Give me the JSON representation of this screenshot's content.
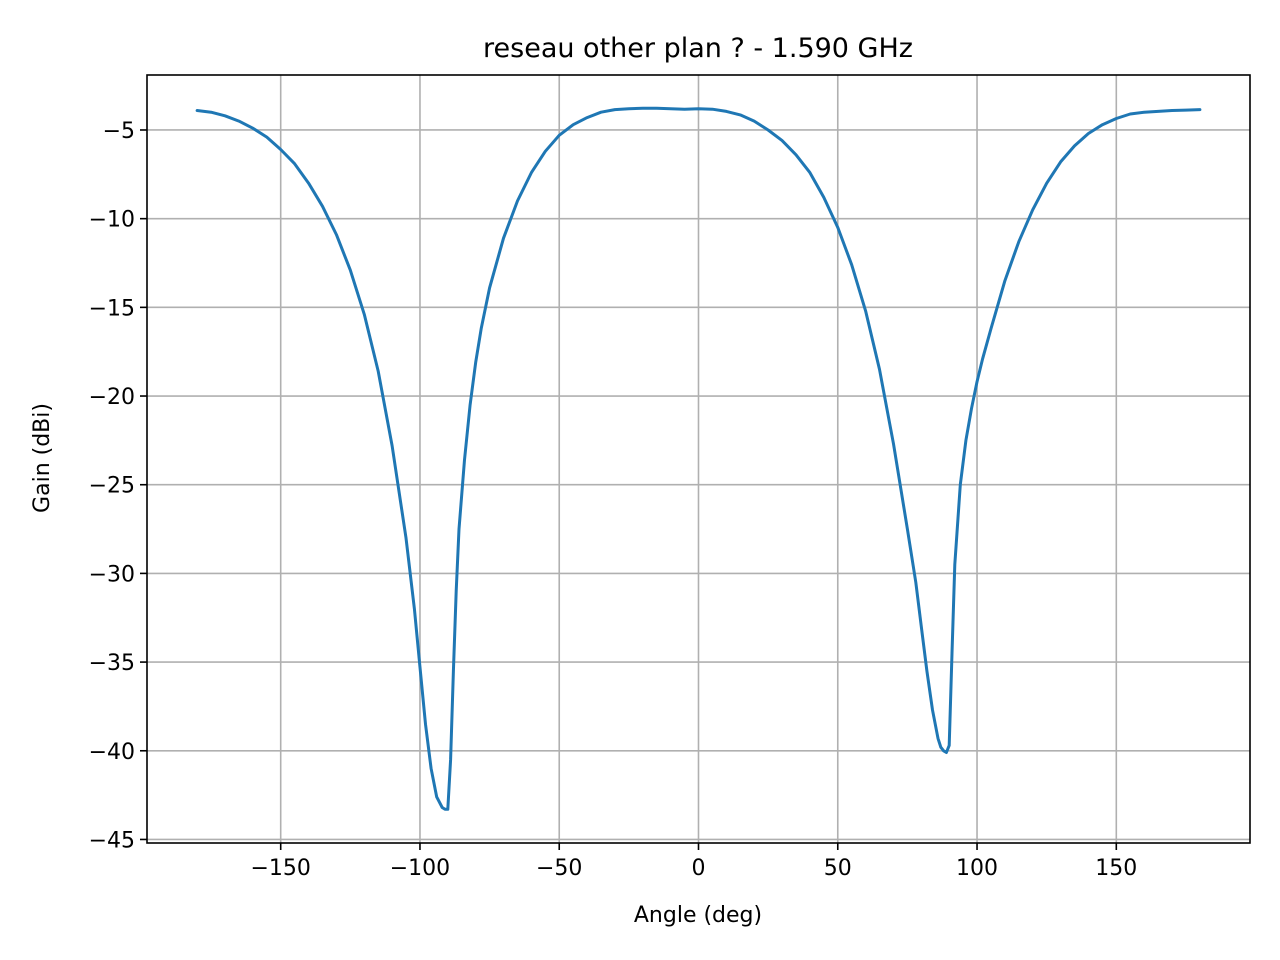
{
  "chart_data": {
    "type": "line",
    "title": "reseau other plan ? - 1.590 GHz",
    "xlabel": "Angle (deg)",
    "ylabel": "Gain (dBi)",
    "xlim": [
      -198,
      198
    ],
    "ylim": [
      -45.2,
      -1.9
    ],
    "xticks": [
      -150,
      -100,
      -50,
      0,
      50,
      100,
      150
    ],
    "xtick_labels": [
      "−150",
      "−100",
      "−50",
      "0",
      "50",
      "100",
      "150"
    ],
    "yticks": [
      -5,
      -10,
      -15,
      -20,
      -25,
      -30,
      -35,
      -40,
      -45
    ],
    "ytick_labels": [
      "−5",
      "−10",
      "−15",
      "−20",
      "−25",
      "−30",
      "−35",
      "−40",
      "−45"
    ],
    "grid": true,
    "series": [
      {
        "color": "#1f77b4",
        "x": [
          -180,
          -175,
          -170,
          -165,
          -160,
          -155,
          -150,
          -145,
          -140,
          -135,
          -130,
          -125,
          -120,
          -115,
          -110,
          -105,
          -102,
          -100,
          -98,
          -96,
          -94,
          -92,
          -91,
          -90,
          -89,
          -88,
          -87,
          -86,
          -84,
          -82,
          -80,
          -78,
          -75,
          -70,
          -65,
          -60,
          -55,
          -50,
          -45,
          -40,
          -35,
          -30,
          -25,
          -20,
          -15,
          -10,
          -5,
          0,
          5,
          10,
          15,
          20,
          25,
          30,
          35,
          40,
          45,
          50,
          55,
          60,
          65,
          70,
          75,
          78,
          80,
          82,
          84,
          86,
          87,
          88,
          89,
          90,
          91,
          92,
          94,
          96,
          98,
          100,
          102,
          105,
          110,
          115,
          120,
          125,
          130,
          135,
          140,
          145,
          150,
          155,
          160,
          165,
          170,
          175,
          180
        ],
        "y": [
          -3.9,
          -4.0,
          -4.2,
          -4.5,
          -4.9,
          -5.4,
          -6.1,
          -6.9,
          -8.0,
          -9.3,
          -10.9,
          -12.9,
          -15.4,
          -18.6,
          -22.8,
          -28.0,
          -32.0,
          -35.3,
          -38.5,
          -41.0,
          -42.6,
          -43.2,
          -43.3,
          -43.3,
          -40.5,
          -35.5,
          -31.0,
          -27.5,
          -23.6,
          -20.5,
          -18.1,
          -16.2,
          -13.9,
          -11.1,
          -9.0,
          -7.4,
          -6.2,
          -5.3,
          -4.7,
          -4.3,
          -4.0,
          -3.85,
          -3.8,
          -3.78,
          -3.78,
          -3.8,
          -3.83,
          -3.8,
          -3.83,
          -3.95,
          -4.15,
          -4.5,
          -5.0,
          -5.6,
          -6.4,
          -7.4,
          -8.8,
          -10.5,
          -12.6,
          -15.2,
          -18.5,
          -22.7,
          -27.5,
          -30.5,
          -33.0,
          -35.5,
          -37.7,
          -39.3,
          -39.8,
          -40.0,
          -40.1,
          -39.7,
          -34.5,
          -29.5,
          -25.0,
          -22.5,
          -20.7,
          -19.2,
          -17.9,
          -16.2,
          -13.5,
          -11.3,
          -9.5,
          -8.0,
          -6.8,
          -5.9,
          -5.2,
          -4.7,
          -4.35,
          -4.1,
          -4.0,
          -3.95,
          -3.9,
          -3.88,
          -3.85
        ]
      }
    ]
  }
}
